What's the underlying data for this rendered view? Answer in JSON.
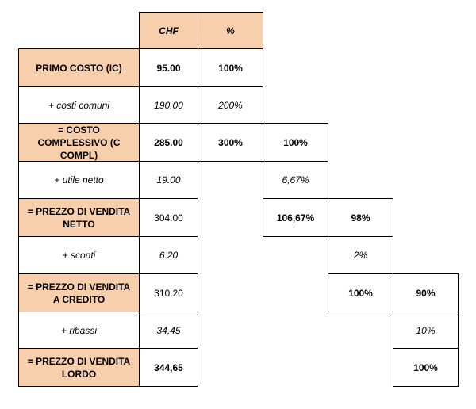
{
  "header": {
    "chf": "CHF",
    "pct": "%"
  },
  "rows": [
    {
      "label": "PRIMO COSTO (IC)",
      "chf": "95.00",
      "c1": "100%"
    },
    {
      "label": "+ costi comuni",
      "chf": "190.00",
      "c1": "200%"
    },
    {
      "label": "= COSTO COMPLESSIVO (C COMPL)",
      "chf": "285.00",
      "c1": "300%",
      "c2": "100%"
    },
    {
      "label": "+ utile netto",
      "chf": "19.00",
      "c2": "6,67%"
    },
    {
      "label": "= PREZZO DI VENDITA NETTO",
      "chf": "304.00",
      "c2": "106,67%",
      "c3": "98%"
    },
    {
      "label": "+ sconti",
      "chf": "6.20",
      "c3": "2%"
    },
    {
      "label": "= PREZZO DI VENDITA A CREDITO",
      "chf": "310.20",
      "c3": "100%",
      "c4": "90%"
    },
    {
      "label": "+ ribassi",
      "chf": "34,45",
      "c4": "10%"
    },
    {
      "label": "= PREZZO DI VENDITA LORDO",
      "chf": "344,65",
      "c4": "100%"
    }
  ],
  "colors": {
    "highlight": "#f8cfad",
    "border": "#000000"
  }
}
